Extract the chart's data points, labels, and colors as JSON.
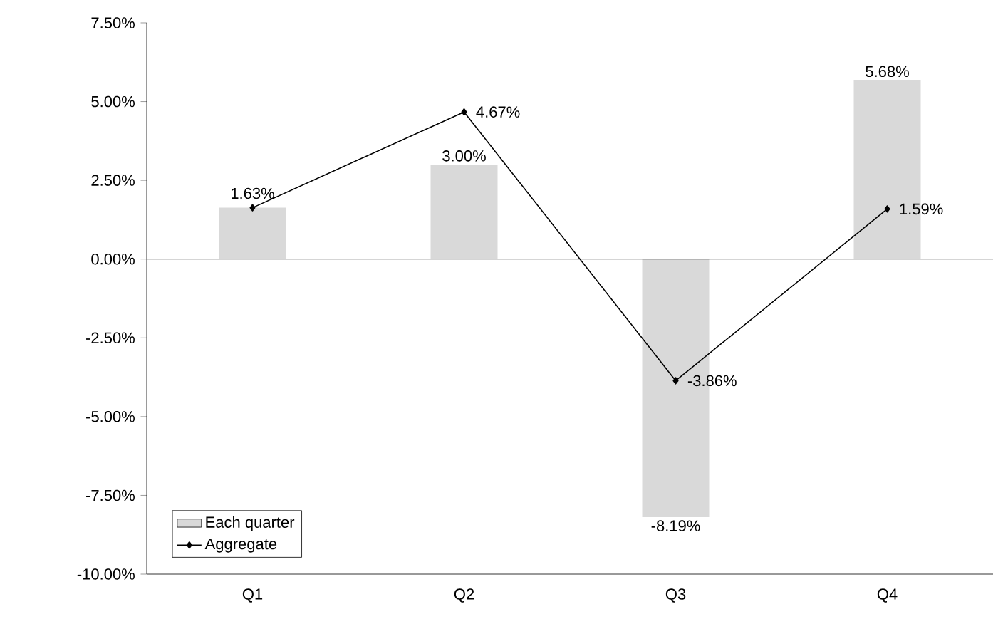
{
  "chart_data": {
    "type": "bar",
    "categories": [
      "Q1",
      "Q2",
      "Q3",
      "Q4"
    ],
    "series": [
      {
        "name": "Each quarter",
        "color": "#d9d9d9",
        "values": [
          1.63,
          3.0,
          -8.19,
          5.68
        ],
        "value_labels": [
          null,
          "3.00%",
          "-8.19%",
          "5.68%"
        ]
      },
      {
        "name": "Aggregate",
        "type": "line",
        "color": "#000000",
        "marker": "diamond",
        "values": [
          1.63,
          4.67,
          -3.86,
          1.59
        ],
        "value_labels": [
          "1.63%",
          "4.67%",
          "-3.86%",
          "1.59%"
        ]
      }
    ],
    "ylim": [
      -10,
      7.5
    ],
    "yticks": [
      {
        "value": -10,
        "label": "-10.00%"
      },
      {
        "value": -7.5,
        "label": "-7.50%"
      },
      {
        "value": -5,
        "label": "-5.00%"
      },
      {
        "value": -2.5,
        "label": "-2.50%"
      },
      {
        "value": 0,
        "label": "0.00%"
      },
      {
        "value": 2.5,
        "label": "2.50%"
      },
      {
        "value": 5,
        "label": "5.00%"
      },
      {
        "value": 7.5,
        "label": "7.50%"
      }
    ],
    "legend": "bottom left"
  }
}
